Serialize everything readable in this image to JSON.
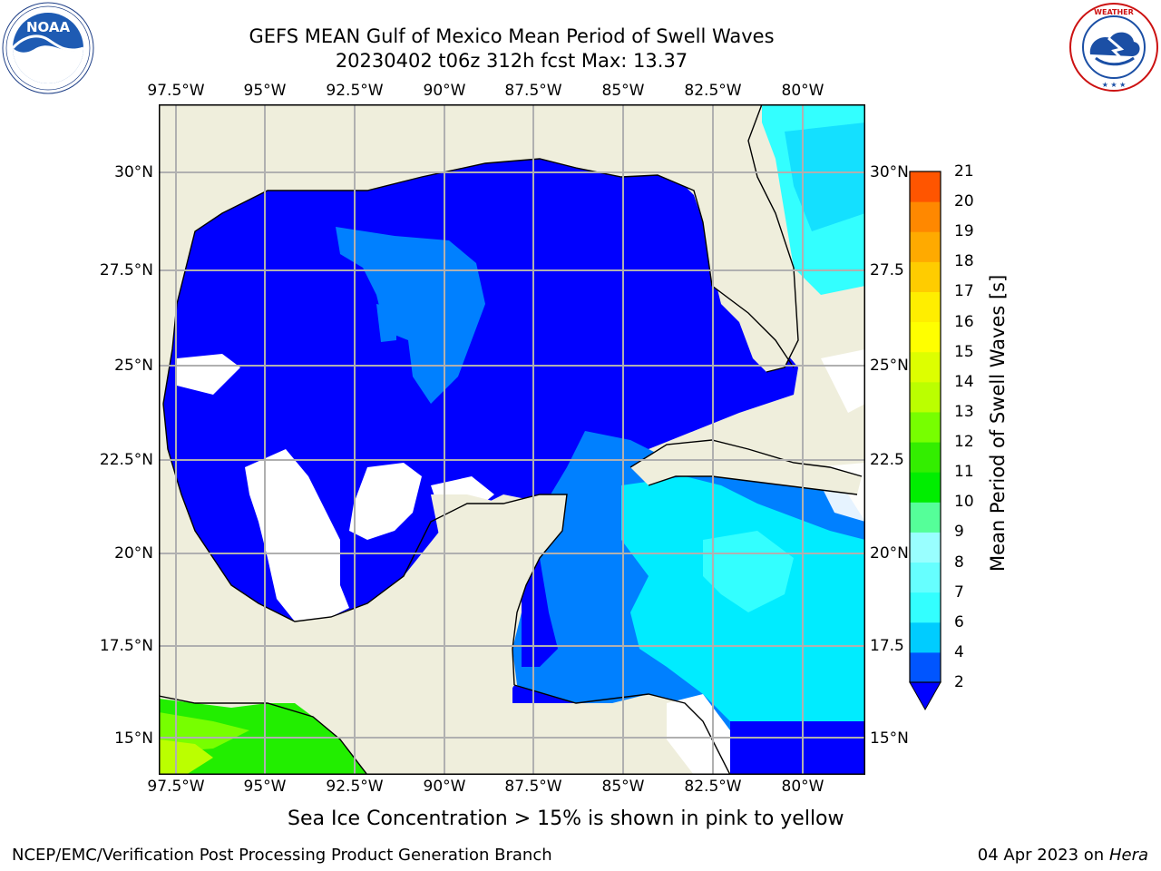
{
  "title": {
    "line1": "GEFS MEAN Gulf of Mexico Mean Period of Swell Waves",
    "line2": "20230402 t06z 312h fcst   Max: 13.37"
  },
  "logos": {
    "left": {
      "name": "noaa-logo",
      "text": "NOAA",
      "ring_text": "NATIONAL OCEANIC AND ATMOSPHERIC ADMINISTRATION · U.S. DEPARTMENT OF COMMERCE"
    },
    "right": {
      "name": "nws-logo",
      "ring_text": "NATIONAL WEATHER SERVICE"
    }
  },
  "axes": {
    "lon_ticks": [
      "97.5°W",
      "95°W",
      "92.5°W",
      "90°W",
      "87.5°W",
      "85°W",
      "82.5°W",
      "80°W"
    ],
    "lat_ticks_left": [
      "30°N",
      "27.5°N",
      "25°N",
      "22.5°N",
      "20°N",
      "17.5°N",
      "15°N"
    ],
    "lat_ticks_right": [
      "30°N",
      "27.5",
      "25°N",
      "22.5",
      "20°N",
      "17.5",
      "15°N"
    ],
    "grid": true
  },
  "colorbar": {
    "label": "Mean Period of Swell Waves [s]",
    "ticks": [
      "21",
      "20",
      "19",
      "18",
      "17",
      "16",
      "15",
      "14",
      "13",
      "12",
      "11",
      "10",
      "9",
      "8",
      "7",
      "6",
      "4",
      "2"
    ],
    "levels": [
      2,
      4,
      6,
      7,
      8,
      9,
      10,
      11,
      12,
      13,
      14,
      15,
      16,
      17,
      18,
      19,
      20,
      21
    ],
    "colors": [
      "#0055ff",
      "#00ccff",
      "#33ffff",
      "#66ffff",
      "#99ffff",
      "#55ff99",
      "#00ee00",
      "#33ee00",
      "#77ff00",
      "#bbff00",
      "#ddff00",
      "#ffff00",
      "#ffee00",
      "#ffcc00",
      "#ffaa00",
      "#ff8800",
      "#ff5500",
      "#ff2200",
      "#ff0000"
    ],
    "extend_color": "#0000ff"
  },
  "colors": {
    "land": "#efeedc",
    "deep_blue": "#0000ff",
    "mid_blue": "#0080ff",
    "cyan": "#00ffff",
    "light_cyan": "#40ffff",
    "green": "#22ee00",
    "yellow_green": "#bbff00"
  },
  "note": "Sea Ice Concentration > 15% is shown in pink to yellow",
  "footer": {
    "left": "NCEP/EMC/Verification Post Processing Product Generation Branch",
    "right_date": "04 Apr 2023 on ",
    "right_host": "Hera"
  }
}
